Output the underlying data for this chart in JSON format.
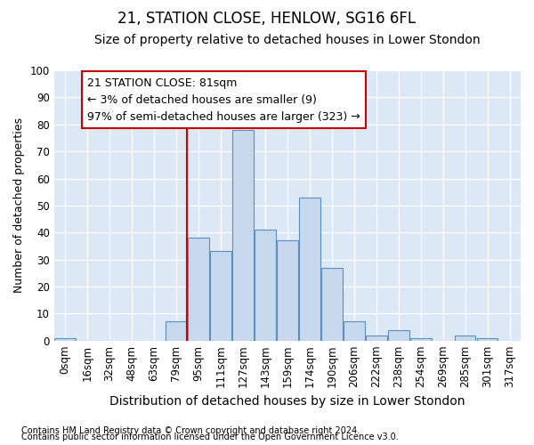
{
  "title": "21, STATION CLOSE, HENLOW, SG16 6FL",
  "subtitle": "Size of property relative to detached houses in Lower Stondon",
  "xlabel": "Distribution of detached houses by size in Lower Stondon",
  "ylabel": "Number of detached properties",
  "footnote1": "Contains HM Land Registry data © Crown copyright and database right 2024.",
  "footnote2": "Contains public sector information licensed under the Open Government Licence v3.0.",
  "bin_labels": [
    "0sqm",
    "16sqm",
    "32sqm",
    "48sqm",
    "63sqm",
    "79sqm",
    "95sqm",
    "111sqm",
    "127sqm",
    "143sqm",
    "159sqm",
    "174sqm",
    "190sqm",
    "206sqm",
    "222sqm",
    "238sqm",
    "254sqm",
    "269sqm",
    "285sqm",
    "301sqm",
    "317sqm"
  ],
  "bar_values": [
    1,
    0,
    0,
    0,
    0,
    7,
    38,
    33,
    78,
    41,
    37,
    53,
    27,
    7,
    2,
    4,
    1,
    0,
    2,
    1,
    0
  ],
  "bar_color": "#c9d9ed",
  "bar_edge_color": "#5a8fc2",
  "red_line_x": 5.5,
  "annotation_text": "21 STATION CLOSE: 81sqm\n← 3% of detached houses are smaller (9)\n97% of semi-detached houses are larger (323) →",
  "annotation_box_color": "#ffffff",
  "annotation_box_edge": "#cc0000",
  "ylim": [
    0,
    100
  ],
  "yticks": [
    0,
    10,
    20,
    30,
    40,
    50,
    60,
    70,
    80,
    90,
    100
  ],
  "bg_color": "#ffffff",
  "plot_bg_color": "#dce8f5",
  "title_fontsize": 12,
  "subtitle_fontsize": 10,
  "xlabel_fontsize": 10,
  "ylabel_fontsize": 9,
  "tick_fontsize": 8.5,
  "annotation_fontsize": 9
}
